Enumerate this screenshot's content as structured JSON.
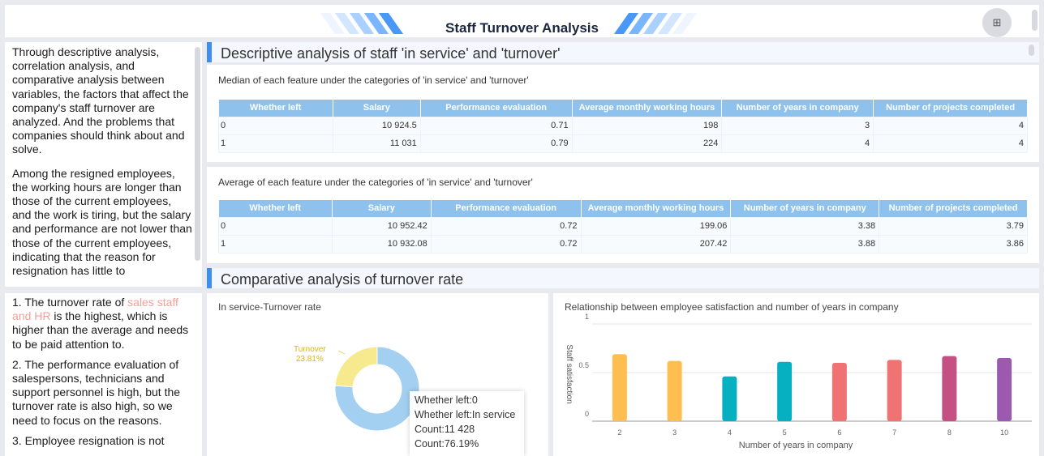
{
  "header": {
    "title": "Staff Turnover Analysis",
    "expand_icon": "fullscreen-icon"
  },
  "left_panel": {
    "paragraphs": [
      "Through descriptive analysis, correlation analysis, and comparative analysis between variables, the factors that affect the company's staff turnover are analyzed. And the problems that companies should think about and solve.",
      "Among the resigned employees, the working hours are longer than those of the current employees, and the work is tiring, but the salary and performance are not lower than those of the current employees, indicating that the reason for resignation has little to"
    ],
    "findings": {
      "p1_pre": "1. The turnover rate of ",
      "p1_highlight": "sales staff and HR",
      "p1_post": " is the highest, which is higher than the average and needs to be paid attention to.",
      "p2": "2. The performance evaluation of salespersons, technicians and support personnel is high, but the turnover rate is also high, so we need to focus on the reasons.",
      "p3": "3. Employee resignation is not",
      "highlight_color": "#f4a09a"
    }
  },
  "section1": {
    "title": "Descriptive analysis of staff 'in service' and 'turnover'"
  },
  "median_table": {
    "title": "Median of each feature under the categories of 'in service' and 'turnover'",
    "columns": [
      "Whether left",
      "Salary",
      "Performance evaluation",
      "Average monthly working hours",
      "Number of years in company",
      "Number of projects completed"
    ],
    "rows": [
      [
        "0",
        "10 924.5",
        "0.71",
        "198",
        "3",
        "4"
      ],
      [
        "1",
        "11 031",
        "0.79",
        "224",
        "4",
        "4"
      ]
    ]
  },
  "average_table": {
    "title": "Average of each feature under the categories of 'in service' and 'turnover'",
    "columns": [
      "Whether left",
      "Salary",
      "Performance evaluation",
      "Average monthly working hours",
      "Number of years in company",
      "Number of projects completed"
    ],
    "rows": [
      [
        "0",
        "10 952.42",
        "0.72",
        "199.06",
        "3.38",
        "3.79"
      ],
      [
        "1",
        "10 932.08",
        "0.72",
        "207.42",
        "3.88",
        "3.86"
      ]
    ]
  },
  "section2": {
    "title": "Comparative analysis of turnover rate"
  },
  "chart_data": [
    {
      "type": "pie",
      "title": "In service-Turnover rate",
      "donut": true,
      "slices": [
        {
          "name": "Turnover",
          "value": 23.81,
          "label": "Turnover",
          "pct_label": "23.81%",
          "color": "#f7e98e"
        },
        {
          "name": "In service",
          "value": 76.19,
          "color": "#a3cff0"
        }
      ],
      "tooltip": {
        "line1": "Whether left:0",
        "line2": "Whether left:In service",
        "line3": "Count:11 428",
        "line4": "Count:76.19%"
      }
    },
    {
      "type": "bar",
      "title": "Relationship between employee satisfaction and number of years in company",
      "xlabel": "Number of years in company",
      "ylabel": "Staff satisfaction",
      "ylim": [
        0,
        1
      ],
      "yticks": [
        "0",
        "0.5",
        "1"
      ],
      "grid": true,
      "categories": [
        "2",
        "3",
        "4",
        "5",
        "6",
        "7",
        "8",
        "10"
      ],
      "values": [
        0.69,
        0.62,
        0.46,
        0.61,
        0.6,
        0.63,
        0.67,
        0.65
      ],
      "colors": [
        "#ffbe4f",
        "#ffbe4f",
        "#06b0c1",
        "#06b0c1",
        "#f07373",
        "#f07373",
        "#c45181",
        "#9b59b0"
      ]
    }
  ]
}
